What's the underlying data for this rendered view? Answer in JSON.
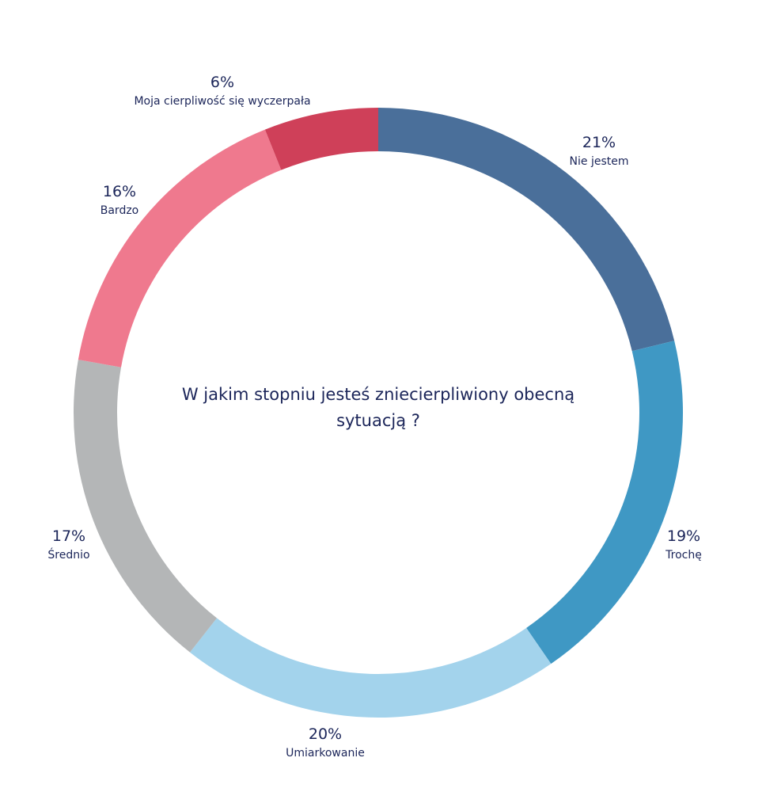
{
  "chart_data": {
    "type": "pie",
    "variant": "donut",
    "title": "W jakim stopniu jesteś zniecierpliwiony obecną sytuacją ?",
    "start": "top",
    "direction": "clockwise",
    "slices": [
      {
        "label": "Nie jestem",
        "value": 21,
        "value_label": "21%",
        "color": "#4A6F9A"
      },
      {
        "label": "Trochę",
        "value": 19,
        "value_label": "19%",
        "color": "#3F98C4"
      },
      {
        "label": "Umiarkowanie",
        "value": 20,
        "value_label": "20%",
        "color": "#A3D3EC"
      },
      {
        "label": "Średnio",
        "value": 17,
        "value_label": "17%",
        "color": "#B4B6B7"
      },
      {
        "label": "Bardzo",
        "value": 16,
        "value_label": "16%",
        "color": "#EF798E"
      },
      {
        "label": "Moja cierpliwość się wyczerpała",
        "value": 6,
        "value_label": "6%",
        "color": "#CF4059"
      }
    ]
  }
}
